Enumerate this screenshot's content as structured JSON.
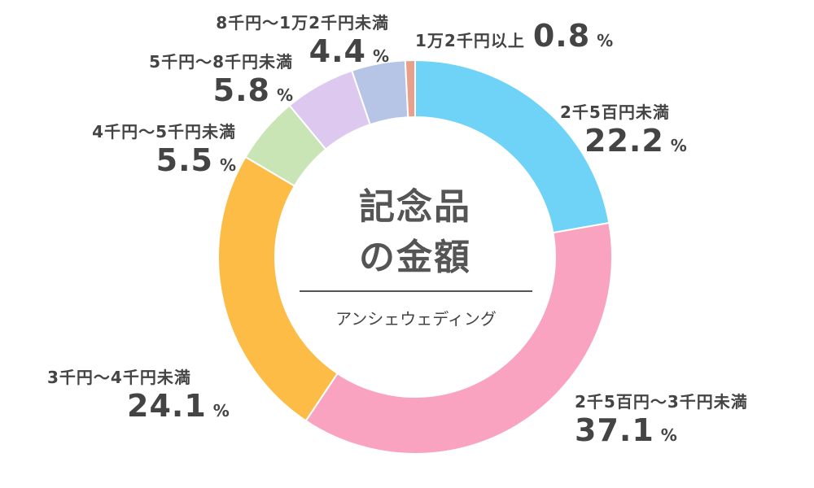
{
  "chart_data": {
    "type": "pie",
    "donut": true,
    "title": "記念品の金額",
    "title_lines": [
      "記念品",
      "の金額"
    ],
    "subtitle": "アンシェウェディング",
    "unit": "%",
    "slices": [
      {
        "label": "2千5百円未満",
        "value": 22.2,
        "color": "#6fd3f7"
      },
      {
        "label": "2千5百円〜3千円未満",
        "value": 37.1,
        "color": "#f9a3c0"
      },
      {
        "label": "3千円〜4千円未満",
        "value": 24.1,
        "color": "#fcbc45"
      },
      {
        "label": "4千円〜5千円未満",
        "value": 5.5,
        "color": "#c9e5b5"
      },
      {
        "label": "5千円〜8千円未満",
        "value": 5.8,
        "color": "#ddc9ef"
      },
      {
        "label": "8千円〜1万2千円未満",
        "value": 4.4,
        "color": "#b6c5e6"
      },
      {
        "label": "1万2千円以上",
        "value": 0.8,
        "color": "#e8a08a"
      }
    ],
    "value_labels": [
      "22.2",
      "37.1",
      "24.1",
      "5.5",
      "5.8",
      "4.4",
      "0.8"
    ],
    "legend": "none"
  }
}
